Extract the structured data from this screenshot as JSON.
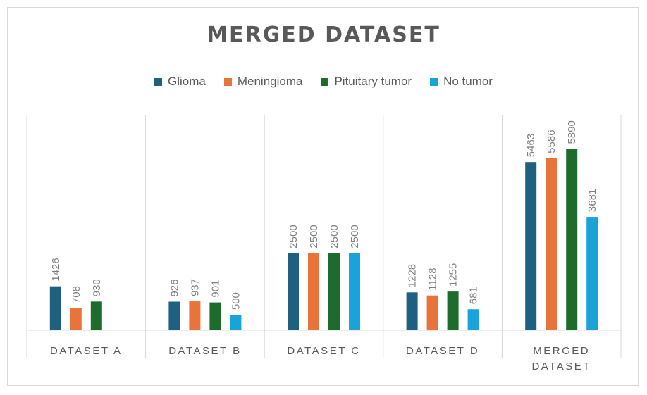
{
  "chart_data": {
    "type": "bar",
    "title": "MERGED DATASET",
    "categories": [
      "DATASET A",
      "DATASET B",
      "DATASET C",
      "DATASET D",
      "MERGED DATASET"
    ],
    "series": [
      {
        "name": "Glioma",
        "color": "#1f5f7f",
        "values": [
          1426,
          926,
          2500,
          1228,
          5463
        ]
      },
      {
        "name": "Meningioma",
        "color": "#e8743b",
        "values": [
          708,
          937,
          2500,
          1128,
          5586
        ]
      },
      {
        "name": "Pituitary tumor",
        "color": "#1e6b2e",
        "values": [
          930,
          901,
          2500,
          1255,
          5890
        ]
      },
      {
        "name": "No tumor",
        "color": "#1aa3d9",
        "values": [
          null,
          500,
          2500,
          681,
          3681
        ]
      }
    ],
    "xlabel": "",
    "ylabel": "",
    "ylim": [
      0,
      7000
    ],
    "grid": false,
    "legend_position": "top"
  }
}
